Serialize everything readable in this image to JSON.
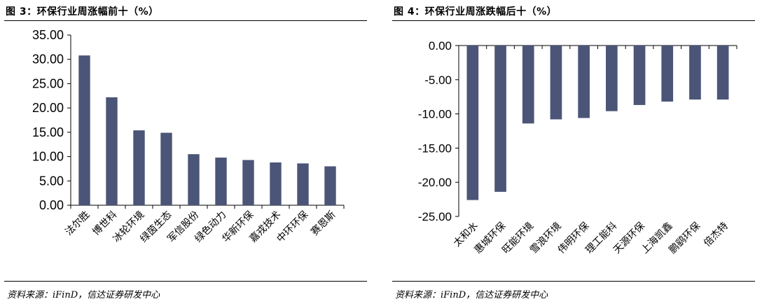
{
  "charts": [
    {
      "title": "图 3：环保行业周涨幅前十（%）",
      "source": "资料来源：iFinD，信达证券研发中心",
      "chart_data": {
        "type": "bar",
        "title": "图 3：环保行业周涨幅前十（%）",
        "categories": [
          "法尔胜",
          "博世科",
          "冰轮环境",
          "绿茵生态",
          "军信股份",
          "绿色动力",
          "华新环保",
          "嘉戎技术",
          "中环环保",
          "赛恩斯"
        ],
        "values": [
          30.8,
          22.2,
          15.4,
          14.9,
          10.5,
          9.8,
          9.3,
          8.8,
          8.6,
          8.0
        ],
        "yticks": [
          "35.00",
          "30.00",
          "25.00",
          "20.00",
          "15.00",
          "10.00",
          "5.00",
          "0.00"
        ],
        "ylim": [
          0,
          35
        ],
        "xlabel": "",
        "ylabel": "",
        "grid": false,
        "bar_color": "#4b5577"
      }
    },
    {
      "title": "图 4：环保行业周涨跌幅后十（%）",
      "source": "资料来源：iFinD，信达证券研发中心",
      "chart_data": {
        "type": "bar",
        "title": "图 4：环保行业周涨跌幅后十（%）",
        "categories": [
          "太和水",
          "惠城环保",
          "旺能环境",
          "雪浪环境",
          "伟明环保",
          "理工能科",
          "天源环保",
          "上海凯鑫",
          "鹏鹞环保",
          "倍杰特"
        ],
        "values": [
          -22.6,
          -21.4,
          -11.4,
          -10.8,
          -10.6,
          -9.6,
          -8.7,
          -8.2,
          -7.9,
          -7.9
        ],
        "yticks": [
          "0.00",
          "-5.00",
          "-10.00",
          "-15.00",
          "-20.00",
          "-25.00"
        ],
        "ylim": [
          -25,
          0
        ],
        "xlabel": "",
        "ylabel": "",
        "grid": false,
        "bar_color": "#4b5577"
      }
    }
  ]
}
